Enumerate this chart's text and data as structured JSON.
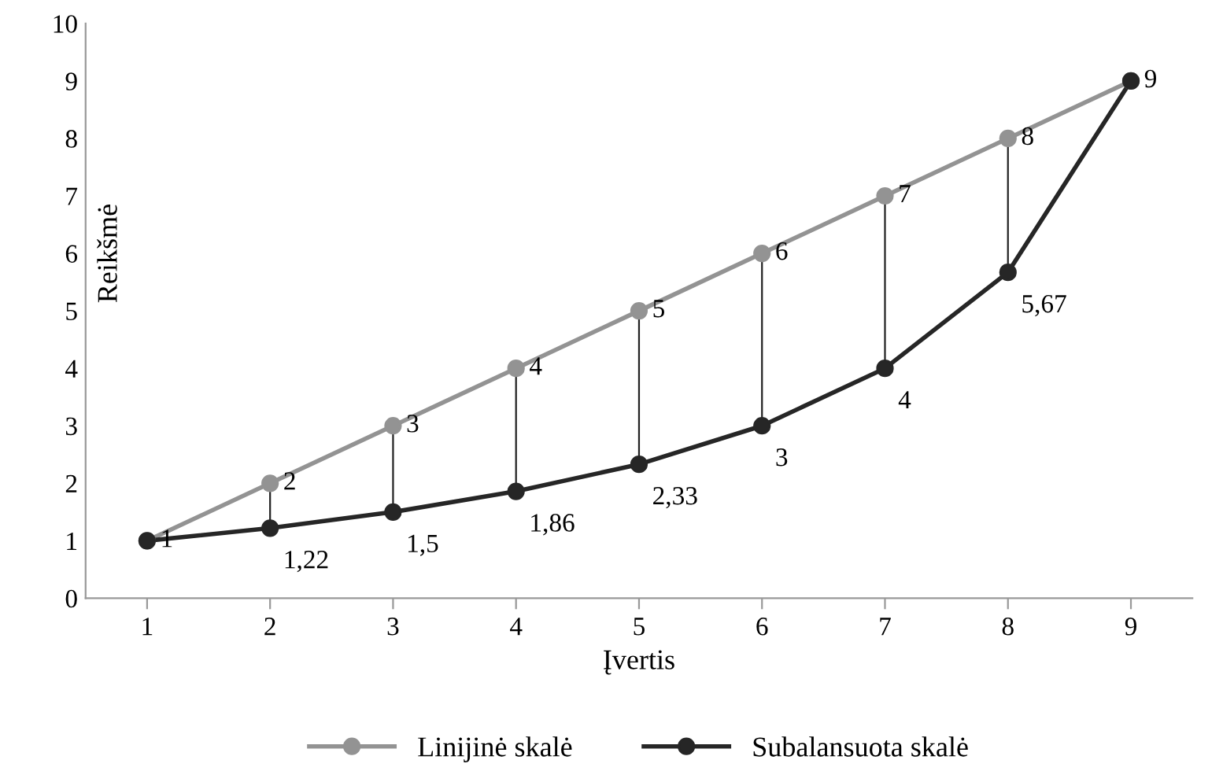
{
  "chart_data": {
    "type": "line",
    "xlabel": "Įvertis",
    "ylabel": "Reikšmė",
    "categories": [
      "1",
      "2",
      "3",
      "4",
      "5",
      "6",
      "7",
      "8",
      "9"
    ],
    "series": [
      {
        "name": "Linijinė skalė",
        "color": "#939393",
        "values": [
          1,
          2,
          3,
          4,
          5,
          6,
          7,
          8,
          9
        ],
        "value_labels": [
          "1",
          "2",
          "3",
          "4",
          "5",
          "6",
          "7",
          "8",
          "9"
        ]
      },
      {
        "name": "Subalansuota skalė",
        "color": "#262626",
        "values": [
          1,
          1.22,
          1.5,
          1.86,
          2.33,
          3,
          4,
          5.67,
          9
        ],
        "value_labels": [
          null,
          "1,22",
          "1,5",
          "1,86",
          "2,33",
          "3",
          "4",
          "5,67",
          null
        ]
      }
    ],
    "ylim": [
      0,
      10
    ],
    "yticks": [
      0,
      1,
      2,
      3,
      4,
      5,
      6,
      7,
      8,
      9,
      10
    ],
    "grid": false,
    "legend": "bottom",
    "marker": "circle",
    "line_style": "solid"
  }
}
